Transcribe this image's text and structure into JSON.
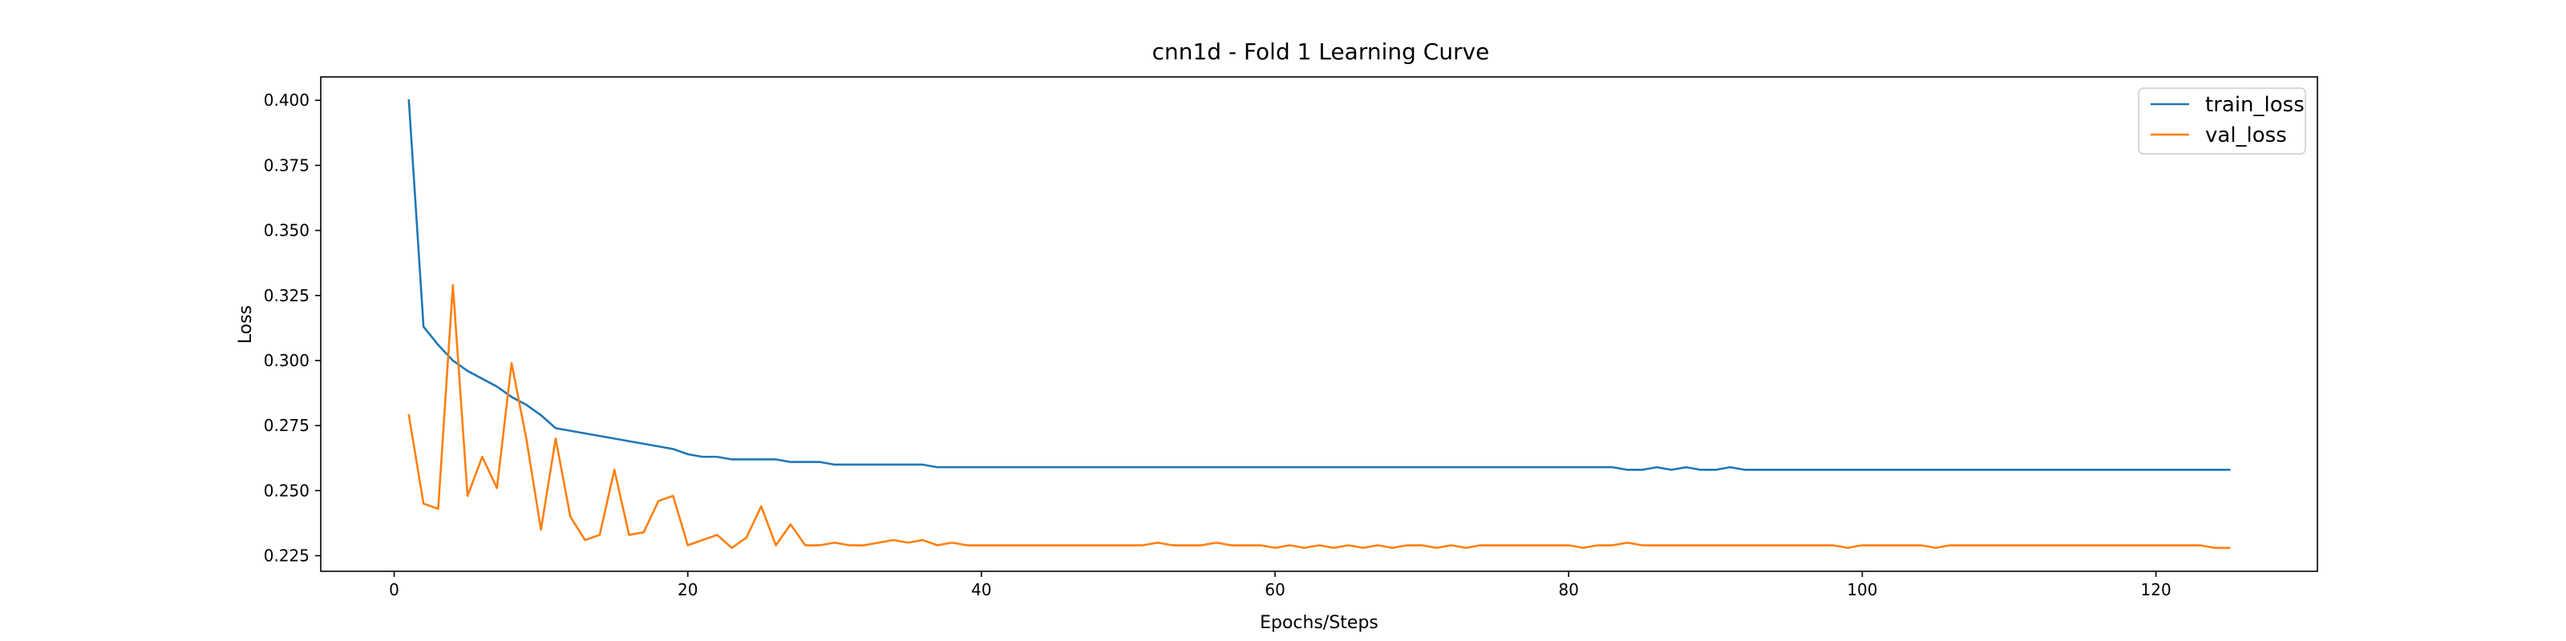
{
  "chart_data": {
    "type": "line",
    "title": "cnn1d - Fold 1 Learning Curve",
    "xlabel": "Epochs/Steps",
    "ylabel": "Loss",
    "xlim": [
      -5,
      131
    ],
    "ylim": [
      0.219,
      0.409
    ],
    "xticks": [
      0,
      20,
      40,
      60,
      80,
      100,
      120
    ],
    "xtick_labels": [
      "0",
      "20",
      "40",
      "60",
      "80",
      "100",
      "120"
    ],
    "yticks": [
      0.225,
      0.25,
      0.275,
      0.3,
      0.325,
      0.35,
      0.375,
      0.4
    ],
    "ytick_labels": [
      "0.225",
      "0.250",
      "0.275",
      "0.300",
      "0.325",
      "0.350",
      "0.375",
      "0.400"
    ],
    "grid": false,
    "legend_position": "top-right",
    "x": [
      1,
      2,
      3,
      4,
      5,
      6,
      7,
      8,
      9,
      10,
      11,
      12,
      13,
      14,
      15,
      16,
      17,
      18,
      19,
      20,
      21,
      22,
      23,
      24,
      25,
      26,
      27,
      28,
      29,
      30,
      31,
      32,
      33,
      34,
      35,
      36,
      37,
      38,
      39,
      40,
      41,
      42,
      43,
      44,
      45,
      46,
      47,
      48,
      49,
      50,
      51,
      52,
      53,
      54,
      55,
      56,
      57,
      58,
      59,
      60,
      61,
      62,
      63,
      64,
      65,
      66,
      67,
      68,
      69,
      70,
      71,
      72,
      73,
      74,
      75,
      76,
      77,
      78,
      79,
      80,
      81,
      82,
      83,
      84,
      85,
      86,
      87,
      88,
      89,
      90,
      91,
      92,
      93,
      94,
      95,
      96,
      97,
      98,
      99,
      100,
      101,
      102,
      103,
      104,
      105,
      106,
      107,
      108,
      109,
      110,
      111,
      112,
      113,
      114,
      115,
      116,
      117,
      118,
      119,
      120,
      121,
      122,
      123,
      124,
      125
    ],
    "series": [
      {
        "name": "train_loss",
        "color": "#1f77b4",
        "values": [
          0.4,
          0.313,
          0.306,
          0.3,
          0.296,
          0.293,
          0.29,
          0.286,
          0.283,
          0.279,
          0.274,
          0.273,
          0.272,
          0.271,
          0.27,
          0.269,
          0.268,
          0.267,
          0.266,
          0.264,
          0.263,
          0.263,
          0.262,
          0.262,
          0.262,
          0.262,
          0.261,
          0.261,
          0.261,
          0.26,
          0.26,
          0.26,
          0.26,
          0.26,
          0.26,
          0.26,
          0.259,
          0.259,
          0.259,
          0.259,
          0.259,
          0.259,
          0.259,
          0.259,
          0.259,
          0.259,
          0.259,
          0.259,
          0.259,
          0.259,
          0.259,
          0.259,
          0.259,
          0.259,
          0.259,
          0.259,
          0.259,
          0.259,
          0.259,
          0.259,
          0.259,
          0.259,
          0.259,
          0.259,
          0.259,
          0.259,
          0.259,
          0.259,
          0.259,
          0.259,
          0.259,
          0.259,
          0.259,
          0.259,
          0.259,
          0.259,
          0.259,
          0.259,
          0.259,
          0.259,
          0.259,
          0.259,
          0.259,
          0.258,
          0.258,
          0.259,
          0.258,
          0.259,
          0.258,
          0.258,
          0.259,
          0.258,
          0.258,
          0.258,
          0.258,
          0.258,
          0.258,
          0.258,
          0.258,
          0.258,
          0.258,
          0.258,
          0.258,
          0.258,
          0.258,
          0.258,
          0.258,
          0.258,
          0.258,
          0.258,
          0.258,
          0.258,
          0.258,
          0.258,
          0.258,
          0.258,
          0.258,
          0.258,
          0.258,
          0.258,
          0.258,
          0.258,
          0.258,
          0.258,
          0.258
        ]
      },
      {
        "name": "val_loss",
        "color": "#ff7f0e",
        "values": [
          0.279,
          0.245,
          0.243,
          0.329,
          0.248,
          0.263,
          0.251,
          0.299,
          0.27,
          0.235,
          0.27,
          0.24,
          0.231,
          0.233,
          0.258,
          0.233,
          0.234,
          0.246,
          0.248,
          0.229,
          0.231,
          0.233,
          0.228,
          0.232,
          0.244,
          0.229,
          0.237,
          0.229,
          0.229,
          0.23,
          0.229,
          0.229,
          0.23,
          0.231,
          0.23,
          0.231,
          0.229,
          0.23,
          0.229,
          0.229,
          0.229,
          0.229,
          0.229,
          0.229,
          0.229,
          0.229,
          0.229,
          0.229,
          0.229,
          0.229,
          0.229,
          0.23,
          0.229,
          0.229,
          0.229,
          0.23,
          0.229,
          0.229,
          0.229,
          0.228,
          0.229,
          0.228,
          0.229,
          0.228,
          0.229,
          0.228,
          0.229,
          0.228,
          0.229,
          0.229,
          0.228,
          0.229,
          0.228,
          0.229,
          0.229,
          0.229,
          0.229,
          0.229,
          0.229,
          0.229,
          0.228,
          0.229,
          0.229,
          0.23,
          0.229,
          0.229,
          0.229,
          0.229,
          0.229,
          0.229,
          0.229,
          0.229,
          0.229,
          0.229,
          0.229,
          0.229,
          0.229,
          0.229,
          0.228,
          0.229,
          0.229,
          0.229,
          0.229,
          0.229,
          0.228,
          0.229,
          0.229,
          0.229,
          0.229,
          0.229,
          0.229,
          0.229,
          0.229,
          0.229,
          0.229,
          0.229,
          0.229,
          0.229,
          0.229,
          0.229,
          0.229,
          0.229,
          0.229,
          0.228,
          0.228
        ]
      }
    ]
  }
}
